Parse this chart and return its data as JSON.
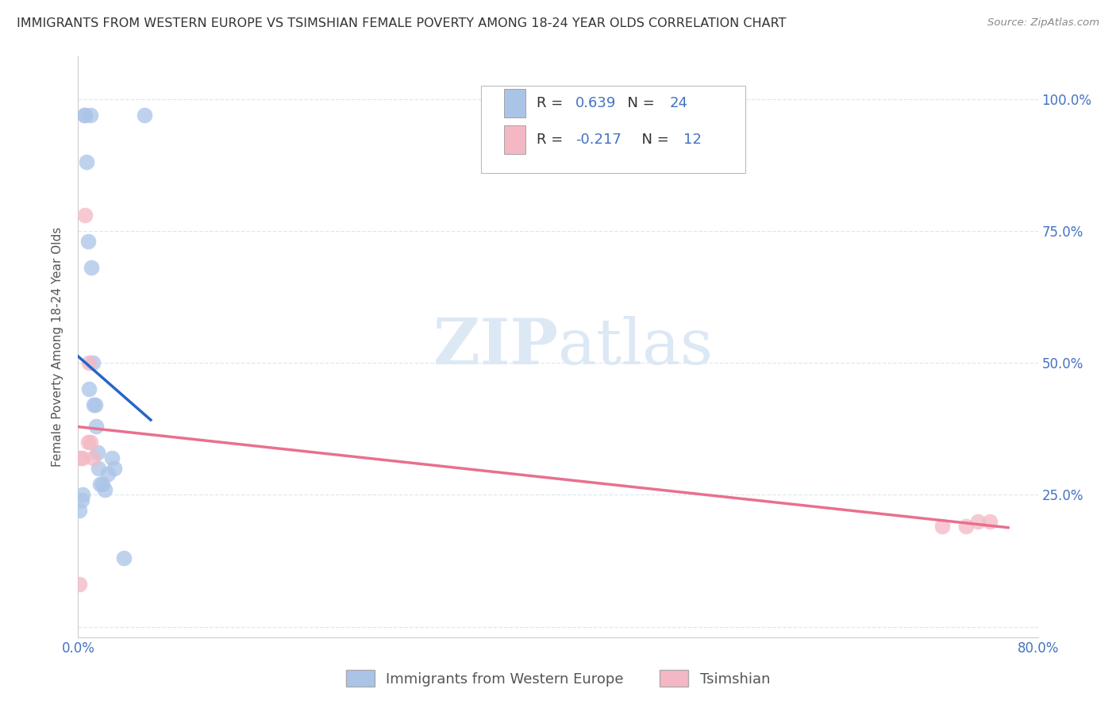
{
  "title": "IMMIGRANTS FROM WESTERN EUROPE VS TSIMSHIAN FEMALE POVERTY AMONG 18-24 YEAR OLDS CORRELATION CHART",
  "source": "Source: ZipAtlas.com",
  "ylabel": "Female Poverty Among 18-24 Year Olds",
  "xlim": [
    0.0,
    0.8
  ],
  "ylim": [
    -0.02,
    1.08
  ],
  "x_ticks": [
    0.0,
    0.1,
    0.2,
    0.3,
    0.4,
    0.5,
    0.6,
    0.7,
    0.8
  ],
  "x_tick_labels": [
    "0.0%",
    "",
    "",
    "",
    "",
    "",
    "",
    "",
    "80.0%"
  ],
  "y_ticks": [
    0.0,
    0.25,
    0.5,
    0.75,
    1.0
  ],
  "y_tick_labels": [
    "",
    "25.0%",
    "50.0%",
    "75.0%",
    "100.0%"
  ],
  "blue_R": 0.639,
  "blue_N": 24,
  "pink_R": -0.217,
  "pink_N": 12,
  "blue_label": "Immigrants from Western Europe",
  "pink_label": "Tsimshian",
  "blue_color": "#aac4e8",
  "pink_color": "#f4b8c4",
  "blue_line_color": "#2565c7",
  "pink_line_color": "#e8708e",
  "legend_text_color": "#4472c4",
  "watermark_color": "#dde8f5",
  "background_color": "#ffffff",
  "grid_color": "#dce8f0",
  "axis_tick_color": "#4472c4",
  "title_color": "#333333",
  "blue_x": [
    0.001,
    0.003,
    0.004,
    0.005,
    0.006,
    0.007,
    0.008,
    0.009,
    0.01,
    0.011,
    0.012,
    0.013,
    0.014,
    0.015,
    0.016,
    0.017,
    0.018,
    0.02,
    0.022,
    0.025,
    0.028,
    0.03,
    0.038,
    0.055
  ],
  "blue_y": [
    0.22,
    0.24,
    0.25,
    0.97,
    0.97,
    0.88,
    0.73,
    0.45,
    0.97,
    0.68,
    0.5,
    0.42,
    0.42,
    0.38,
    0.33,
    0.3,
    0.27,
    0.27,
    0.26,
    0.29,
    0.32,
    0.3,
    0.13,
    0.97
  ],
  "pink_x": [
    0.001,
    0.002,
    0.004,
    0.006,
    0.008,
    0.009,
    0.01,
    0.012,
    0.72,
    0.74,
    0.75,
    0.76
  ],
  "pink_y": [
    0.08,
    0.32,
    0.32,
    0.78,
    0.35,
    0.5,
    0.35,
    0.32,
    0.19,
    0.19,
    0.2,
    0.2
  ]
}
